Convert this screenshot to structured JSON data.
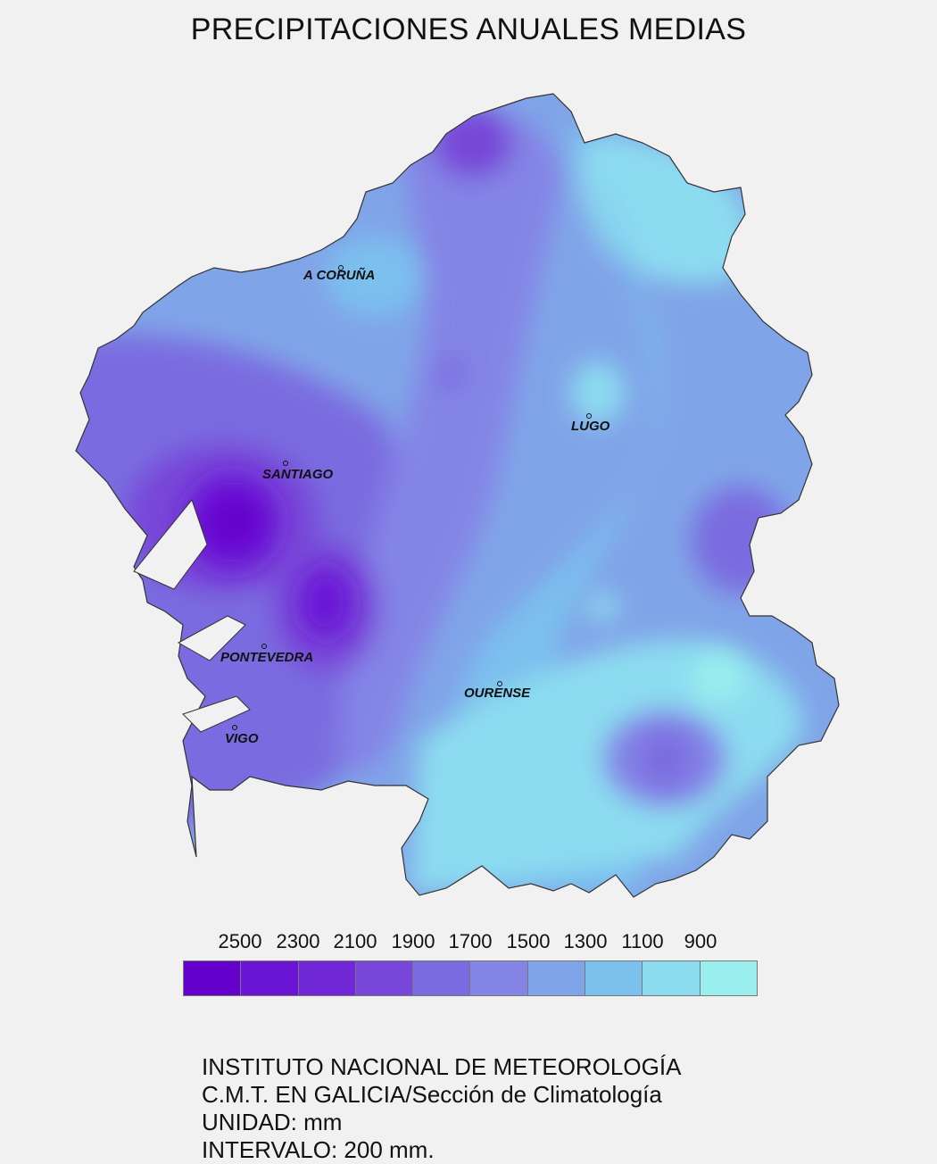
{
  "title": "PRECIPITACIONES ANUALES MEDIAS",
  "cities": [
    {
      "name": "A CORUÑA"
    },
    {
      "name": "LUGO"
    },
    {
      "name": "SANTIAGO"
    },
    {
      "name": "PONTEVEDRA"
    },
    {
      "name": "OURENSE"
    },
    {
      "name": "VIGO"
    }
  ],
  "legend": {
    "labels": [
      "2500",
      "2300",
      "2100",
      "1900",
      "1700",
      "1500",
      "1300",
      "1100",
      "900"
    ],
    "colors": [
      "#6600cc",
      "#6a14d6",
      "#7028d6",
      "#7846d8",
      "#7a6ce0",
      "#8484e6",
      "#80a4e8",
      "#7cc0ee",
      "#8cdcf0",
      "#9aeeee"
    ]
  },
  "credits": {
    "line1": "INSTITUTO NACIONAL DE METEOROLOGÍA",
    "line2": "C.M.T. EN GALICIA/Sección de Climatología",
    "line3": "UNIDAD: mm",
    "line4": "INTERVALO: 200 mm."
  }
}
